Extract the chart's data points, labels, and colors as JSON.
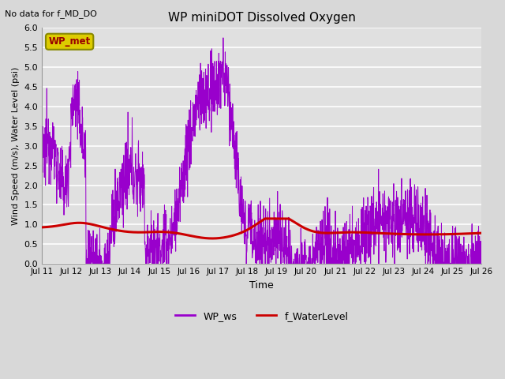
{
  "title": "WP miniDOT Dissolved Oxygen",
  "top_left_text": "No data for f_MD_DO",
  "legend_box_text": "WP_met",
  "xlabel": "Time",
  "ylabel": "Wind Speed (m/s), Water Level (psi)",
  "ylim": [
    0.0,
    6.0
  ],
  "xlim": [
    0,
    15
  ],
  "x_tick_labels": [
    "Jul 11",
    "Jul 12",
    "Jul 13",
    "Jul 14",
    "Jul 15",
    "Jul 16",
    "Jul 17",
    "Jul 18",
    "Jul 19",
    "Jul 20",
    "Jul 21",
    "Jul 22",
    "Jul 23",
    "Jul 24",
    "Jul 25",
    "Jul 26"
  ],
  "legend_entries": [
    "WP_ws",
    "f_WaterLevel"
  ],
  "ws_color": "#9900cc",
  "wl_color": "#cc0000",
  "background_color": "#d8d8d8",
  "axes_bg_color": "#e0e0e0",
  "grid_color": "#ffffff",
  "legend_box_facecolor": "#ddcc00",
  "legend_box_edgecolor": "#888800",
  "legend_box_textcolor": "#990000"
}
